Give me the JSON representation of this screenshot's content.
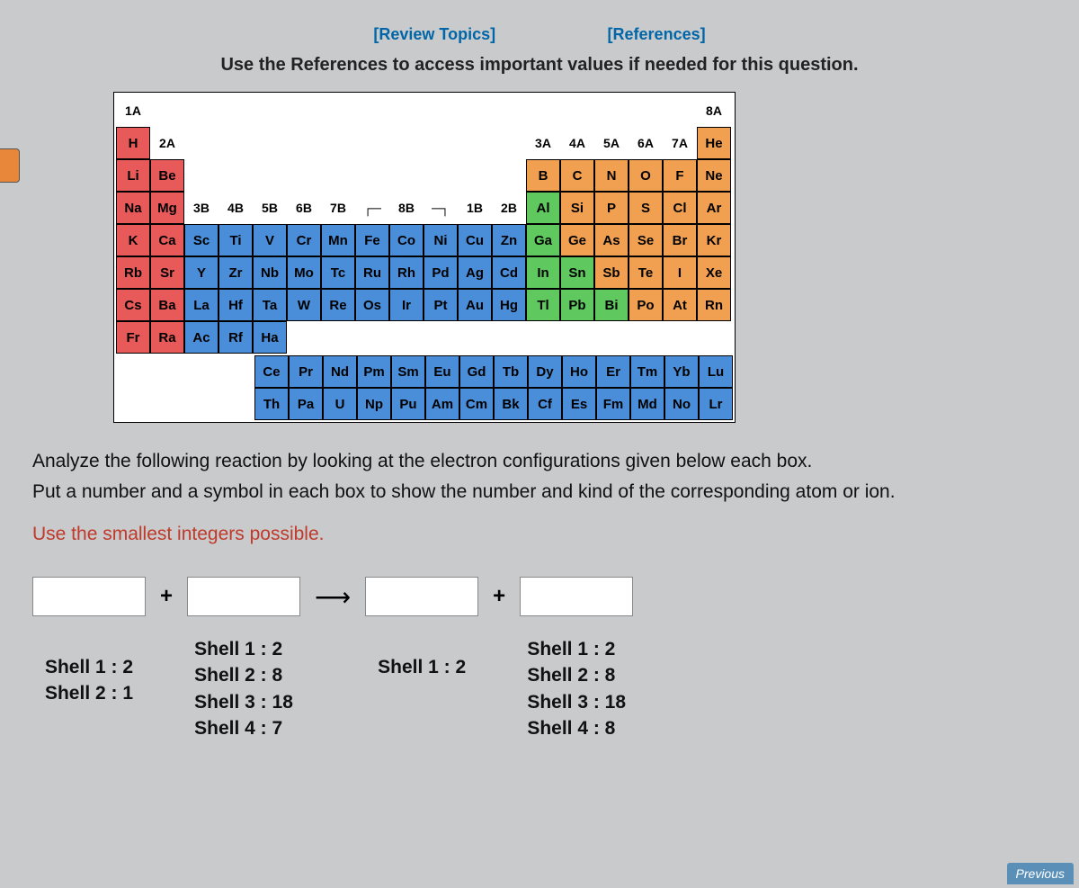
{
  "links": {
    "review": "[Review Topics]",
    "references": "[References]"
  },
  "instruction": "Use the References to access important values if needed for this question.",
  "periodic": {
    "group_headers_top": [
      "1A",
      "",
      "",
      "",
      "",
      "",
      "",
      "",
      "",
      "",
      "",
      "",
      "",
      "",
      "",
      "",
      "",
      "8A"
    ],
    "group_headers_2": [
      "",
      "2A",
      "",
      "",
      "",
      "",
      "",
      "",
      "",
      "",
      "",
      "",
      "3A",
      "4A",
      "5A",
      "6A",
      "7A",
      ""
    ],
    "group_headers_3": [
      "",
      "",
      "3B",
      "4B",
      "5B",
      "6B",
      "7B",
      "┌─",
      "8B",
      "─┐",
      "1B",
      "2B",
      "",
      "",
      "",
      "",
      "",
      ""
    ],
    "rows": [
      [
        [
          "H",
          "red"
        ],
        [
          "",
          "e"
        ],
        [
          "",
          "e"
        ],
        [
          "",
          "e"
        ],
        [
          "",
          "e"
        ],
        [
          "",
          "e"
        ],
        [
          "",
          "e"
        ],
        [
          "",
          "e"
        ],
        [
          "",
          "e"
        ],
        [
          "",
          "e"
        ],
        [
          "",
          "e"
        ],
        [
          "",
          "e"
        ],
        [
          "",
          "e"
        ],
        [
          "",
          "e"
        ],
        [
          "",
          "e"
        ],
        [
          "",
          "e"
        ],
        [
          "",
          "e"
        ],
        [
          "He",
          "orange"
        ]
      ],
      [
        [
          "Li",
          "red"
        ],
        [
          "Be",
          "red"
        ],
        [
          "",
          "e"
        ],
        [
          "",
          "e"
        ],
        [
          "",
          "e"
        ],
        [
          "",
          "e"
        ],
        [
          "",
          "e"
        ],
        [
          "",
          "e"
        ],
        [
          "",
          "e"
        ],
        [
          "",
          "e"
        ],
        [
          "",
          "e"
        ],
        [
          "",
          "e"
        ],
        [
          "B",
          "orange"
        ],
        [
          "C",
          "orange"
        ],
        [
          "N",
          "orange"
        ],
        [
          "O",
          "orange"
        ],
        [
          "F",
          "orange"
        ],
        [
          "Ne",
          "orange"
        ]
      ],
      [
        [
          "Na",
          "red"
        ],
        [
          "Mg",
          "red"
        ],
        [
          "",
          "h"
        ],
        [
          "",
          "h"
        ],
        [
          "",
          "h"
        ],
        [
          "",
          "h"
        ],
        [
          "",
          "h"
        ],
        [
          "",
          "h"
        ],
        [
          "",
          "h"
        ],
        [
          "",
          "h"
        ],
        [
          "",
          "h"
        ],
        [
          "",
          "h"
        ],
        [
          "Al",
          "green"
        ],
        [
          "Si",
          "orange"
        ],
        [
          "P",
          "orange"
        ],
        [
          "S",
          "orange"
        ],
        [
          "Cl",
          "orange"
        ],
        [
          "Ar",
          "orange"
        ]
      ],
      [
        [
          "K",
          "red"
        ],
        [
          "Ca",
          "red"
        ],
        [
          "Sc",
          "blue"
        ],
        [
          "Ti",
          "blue"
        ],
        [
          "V",
          "blue"
        ],
        [
          "Cr",
          "blue"
        ],
        [
          "Mn",
          "blue"
        ],
        [
          "Fe",
          "blue"
        ],
        [
          "Co",
          "blue"
        ],
        [
          "Ni",
          "blue"
        ],
        [
          "Cu",
          "blue"
        ],
        [
          "Zn",
          "blue"
        ],
        [
          "Ga",
          "green"
        ],
        [
          "Ge",
          "orange"
        ],
        [
          "As",
          "orange"
        ],
        [
          "Se",
          "orange"
        ],
        [
          "Br",
          "orange"
        ],
        [
          "Kr",
          "orange"
        ]
      ],
      [
        [
          "Rb",
          "red"
        ],
        [
          "Sr",
          "red"
        ],
        [
          "Y",
          "blue"
        ],
        [
          "Zr",
          "blue"
        ],
        [
          "Nb",
          "blue"
        ],
        [
          "Mo",
          "blue"
        ],
        [
          "Tc",
          "blue"
        ],
        [
          "Ru",
          "blue"
        ],
        [
          "Rh",
          "blue"
        ],
        [
          "Pd",
          "blue"
        ],
        [
          "Ag",
          "blue"
        ],
        [
          "Cd",
          "blue"
        ],
        [
          "In",
          "green"
        ],
        [
          "Sn",
          "green"
        ],
        [
          "Sb",
          "orange"
        ],
        [
          "Te",
          "orange"
        ],
        [
          "I",
          "orange"
        ],
        [
          "Xe",
          "orange"
        ]
      ],
      [
        [
          "Cs",
          "red"
        ],
        [
          "Ba",
          "red"
        ],
        [
          "La",
          "blue"
        ],
        [
          "Hf",
          "blue"
        ],
        [
          "Ta",
          "blue"
        ],
        [
          "W",
          "blue"
        ],
        [
          "Re",
          "blue"
        ],
        [
          "Os",
          "blue"
        ],
        [
          "Ir",
          "blue"
        ],
        [
          "Pt",
          "blue"
        ],
        [
          "Au",
          "blue"
        ],
        [
          "Hg",
          "blue"
        ],
        [
          "Tl",
          "green"
        ],
        [
          "Pb",
          "green"
        ],
        [
          "Bi",
          "green"
        ],
        [
          "Po",
          "orange"
        ],
        [
          "At",
          "orange"
        ],
        [
          "Rn",
          "orange"
        ]
      ],
      [
        [
          "Fr",
          "red"
        ],
        [
          "Ra",
          "red"
        ],
        [
          "Ac",
          "blue"
        ],
        [
          "Rf",
          "blue"
        ],
        [
          "Ha",
          "blue"
        ],
        [
          "",
          "e"
        ],
        [
          "",
          "e"
        ],
        [
          "",
          "e"
        ],
        [
          "",
          "e"
        ],
        [
          "",
          "e"
        ],
        [
          "",
          "e"
        ],
        [
          "",
          "e"
        ],
        [
          "",
          "e"
        ],
        [
          "",
          "e"
        ],
        [
          "",
          "e"
        ],
        [
          "",
          "e"
        ],
        [
          "",
          "e"
        ],
        [
          "",
          "e"
        ]
      ]
    ],
    "lanth": [
      [
        "Ce",
        "blue"
      ],
      [
        "Pr",
        "blue"
      ],
      [
        "Nd",
        "blue"
      ],
      [
        "Pm",
        "blue"
      ],
      [
        "Sm",
        "blue"
      ],
      [
        "Eu",
        "blue"
      ],
      [
        "Gd",
        "blue"
      ],
      [
        "Tb",
        "blue"
      ],
      [
        "Dy",
        "blue"
      ],
      [
        "Ho",
        "blue"
      ],
      [
        "Er",
        "blue"
      ],
      [
        "Tm",
        "blue"
      ],
      [
        "Yb",
        "blue"
      ],
      [
        "Lu",
        "blue"
      ]
    ],
    "actin": [
      [
        "Th",
        "blue"
      ],
      [
        "Pa",
        "blue"
      ],
      [
        "U",
        "blue"
      ],
      [
        "Np",
        "blue"
      ],
      [
        "Pu",
        "blue"
      ],
      [
        "Am",
        "blue"
      ],
      [
        "Cm",
        "blue"
      ],
      [
        "Bk",
        "blue"
      ],
      [
        "Cf",
        "blue"
      ],
      [
        "Es",
        "blue"
      ],
      [
        "Fm",
        "blue"
      ],
      [
        "Md",
        "blue"
      ],
      [
        "No",
        "blue"
      ],
      [
        "Lr",
        "blue"
      ]
    ]
  },
  "question": {
    "line1": "Analyze the following reaction by looking at the electron configurations given below each box.",
    "line2": "Put a number and a symbol in each box to show the number and kind of the corresponding atom or ion.",
    "line3": "Use the smallest integers possible."
  },
  "reaction": {
    "plus": "+",
    "arrow": "⟶",
    "box1_shells": "Shell 1 : 2\nShell 2 : 1",
    "box2_shells": "Shell 1 : 2\nShell 2 : 8\nShell 3 : 18\nShell 4 : 7",
    "box3_shells": "Shell 1 : 2",
    "box4_shells": "Shell 1 : 2\nShell 2 : 8\nShell 3 : 18\nShell 4 : 8"
  },
  "footer": {
    "previous": "Previous"
  }
}
